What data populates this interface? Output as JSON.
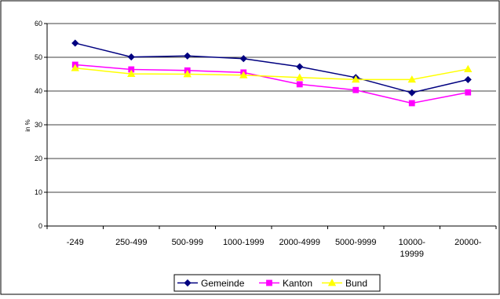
{
  "chart_data": {
    "type": "line",
    "ylabel": "in %",
    "ylim": [
      0,
      60
    ],
    "yticks": [
      0,
      10,
      20,
      30,
      40,
      50,
      60
    ],
    "grid": "horizontal",
    "legend_position": "bottom",
    "categories": [
      "-249",
      "250-499",
      "500-999",
      "1000-1999",
      "2000-4999",
      "5000-9999",
      "10000-\n19999",
      "20000-"
    ],
    "series": [
      {
        "name": "Gemeinde",
        "color": "#000080",
        "marker": "diamond",
        "values": [
          54.2,
          50.1,
          50.4,
          49.6,
          47.2,
          44.0,
          39.5,
          43.4
        ]
      },
      {
        "name": "Kanton",
        "color": "#ff00ff",
        "marker": "square",
        "values": [
          47.8,
          46.4,
          46.1,
          45.5,
          42.0,
          40.3,
          36.4,
          39.6
        ]
      },
      {
        "name": "Bund",
        "color": "#ffff00",
        "marker": "triangle",
        "values": [
          46.8,
          45.1,
          45.0,
          44.7,
          44.0,
          43.4,
          43.4,
          46.5
        ]
      }
    ]
  }
}
